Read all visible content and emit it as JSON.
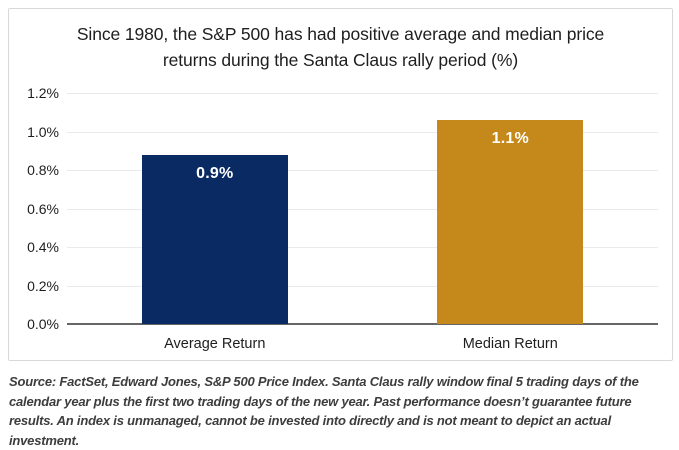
{
  "chart_data": {
    "type": "bar",
    "title": "Since 1980, the S&P 500 has had positive average and median price returns during the Santa Claus rally period (%)",
    "categories": [
      "Average Return",
      "Median Return"
    ],
    "values": [
      0.88,
      1.06
    ],
    "value_labels": [
      "0.9%",
      "1.1%"
    ],
    "bar_colors": [
      "#0a2a63",
      "#c5881b"
    ],
    "ylim": [
      0,
      1.2
    ],
    "yticks": [
      {
        "value": 0.0,
        "label": "0.0%"
      },
      {
        "value": 0.2,
        "label": "0.2%"
      },
      {
        "value": 0.4,
        "label": "0.4%"
      },
      {
        "value": 0.6,
        "label": "0.6%"
      },
      {
        "value": 0.8,
        "label": "0.8%"
      },
      {
        "value": 1.0,
        "label": "1.0%"
      },
      {
        "value": 1.2,
        "label": "1.2%"
      }
    ],
    "grid": true,
    "legend_position": "none",
    "xlabel": "",
    "ylabel": ""
  },
  "footer": {
    "source_note": "Source: FactSet, Edward Jones, S&P 500 Price Index. Santa Claus rally window final 5 trading days of the calendar year plus the first two trading days of the new year. Past performance doesn’t guarantee future results. An index is unmanaged, cannot be invested into directly and is not meant to depict an actual investment."
  },
  "colors": {
    "frame_border": "#d8d8d8",
    "gridline": "#eaeaea",
    "baseline": "#666666",
    "title_text": "#1e1e1e",
    "axis_text": "#1e1e1e",
    "bar_label_text": "#ffffff",
    "source_text": "#3d3d3d",
    "background": "#ffffff"
  }
}
